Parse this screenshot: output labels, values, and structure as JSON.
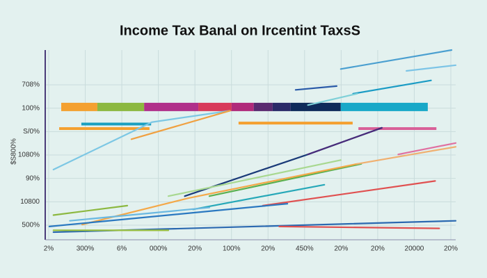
{
  "chart_data": {
    "type": "line",
    "title": "Income Tax Banal on Ircentint TaxsS",
    "y_label": "$S800%",
    "categories": [
      "2%",
      "300%",
      "6%",
      "000%",
      "20%",
      "100%",
      "20%",
      "450%",
      "20%",
      "20%",
      "20000",
      "20%"
    ],
    "y_categories": [
      "708%",
      "100%",
      "S/0%",
      "1080%",
      "90%",
      "10800",
      "500%"
    ],
    "xlim": [
      0,
      100
    ],
    "ylim": [
      0,
      100
    ],
    "grid": true,
    "series": [
      {
        "color": "#4a9fd0",
        "x": [
          72,
          99
        ],
        "values": [
          90,
          100
        ]
      },
      {
        "color": "#7cc4e6",
        "x": [
          88,
          100
        ],
        "values": [
          89,
          92
        ]
      },
      {
        "color": "#1a9bc4",
        "x": [
          75,
          94
        ],
        "values": [
          77,
          84
        ]
      },
      {
        "color": "#2a5aa8",
        "x": [
          61,
          71
        ],
        "values": [
          79,
          81
        ]
      },
      {
        "color": "#7fd0d8",
        "x": [
          64,
          76
        ],
        "values": [
          71,
          77
        ]
      },
      {
        "color": "#7cc7e4",
        "x": [
          2,
          26,
          45
        ],
        "values": [
          37,
          62,
          68
        ]
      },
      {
        "color": "#f0a040",
        "x": [
          21,
          45
        ],
        "values": [
          53,
          68
        ]
      },
      {
        "color": "#1a3a78",
        "x": [
          34,
          64,
          82
        ],
        "values": [
          23,
          45,
          59
        ]
      },
      {
        "color": "#4a2b7a",
        "x": [
          64,
          82
        ],
        "values": [
          45,
          59
        ]
      },
      {
        "color": "#a8d890",
        "x": [
          30,
          72
        ],
        "values": [
          23,
          42
        ]
      },
      {
        "color": "#8cb840",
        "x": [
          2,
          20
        ],
        "values": [
          13,
          18
        ]
      },
      {
        "color": "#5ab050",
        "x": [
          40,
          77
        ],
        "values": [
          23,
          40
        ]
      },
      {
        "color": "#26a8b8",
        "x": [
          36,
          68
        ],
        "values": [
          16,
          29
        ]
      },
      {
        "color": "#f4a848",
        "x": [
          9,
          35,
          76
        ],
        "values": [
          8,
          22,
          40
        ]
      },
      {
        "color": "#f0b070",
        "x": [
          76,
          100
        ],
        "values": [
          40,
          49
        ]
      },
      {
        "color": "#e070a0",
        "x": [
          86,
          100
        ],
        "values": [
          45,
          51
        ]
      },
      {
        "color": "#e05050",
        "x": [
          53,
          95
        ],
        "values": [
          18,
          31
        ]
      },
      {
        "color": "#2a78c0",
        "x": [
          1,
          59
        ],
        "values": [
          7,
          19
        ]
      },
      {
        "color": "#6ab8e0",
        "x": [
          6,
          40
        ],
        "values": [
          10,
          17
        ]
      },
      {
        "color": "#2a68b0",
        "x": [
          2,
          100
        ],
        "values": [
          4,
          10
        ]
      },
      {
        "color": "#e05050",
        "x": [
          57,
          96
        ],
        "values": [
          7,
          6
        ]
      },
      {
        "color": "#9ac040",
        "x": [
          2,
          30
        ],
        "values": [
          5,
          5
        ]
      }
    ],
    "bars": [
      {
        "color": "#f4a030",
        "start": 3.9,
        "end": 12.7,
        "value": 70
      },
      {
        "color": "#8cb840",
        "start": 12.7,
        "end": 24.1,
        "value": 70
      },
      {
        "color": "#b0308a",
        "start": 24.1,
        "end": 37.3,
        "value": 70
      },
      {
        "color": "#d83a5a",
        "start": 37.3,
        "end": 45.4,
        "value": 70
      },
      {
        "color": "#b02a7a",
        "start": 45.4,
        "end": 50.8,
        "value": 70
      },
      {
        "color": "#5a2a70",
        "start": 50.8,
        "end": 55.4,
        "value": 70
      },
      {
        "color": "#2a2a68",
        "start": 55.4,
        "end": 59.8,
        "value": 70
      },
      {
        "color": "#0e2a5a",
        "start": 59.8,
        "end": 72,
        "value": 70
      },
      {
        "color": "#18a8c8",
        "start": 72,
        "end": 93.2,
        "value": 70
      },
      {
        "color": "#f4a030",
        "start": 3.4,
        "end": 25.4,
        "value": 58.6
      },
      {
        "color": "#1aa0c0",
        "start": 8.8,
        "end": 25.8,
        "value": 61
      },
      {
        "color": "#f4a030",
        "start": 47.1,
        "end": 74.9,
        "value": 61.5
      },
      {
        "color": "#d86098",
        "start": 76.3,
        "end": 95.3,
        "value": 58.6
      }
    ]
  }
}
